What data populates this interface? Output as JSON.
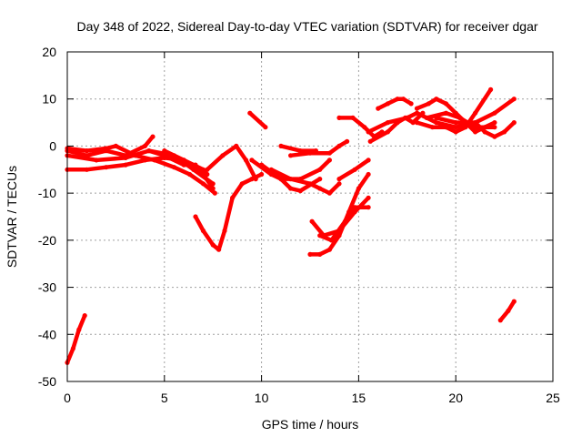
{
  "chart_data": {
    "type": "scatter",
    "title": "Day 348 of 2022, Sidereal Day-to-day VTEC variation (SDTVAR) for receiver dgar",
    "xlabel": "GPS time / hours",
    "ylabel": "SDTVAR / TECUs",
    "xlim": [
      0,
      25
    ],
    "ylim": [
      -50,
      20
    ],
    "xticks": [
      0,
      5,
      10,
      15,
      20,
      25
    ],
    "yticks": [
      -50,
      -40,
      -30,
      -20,
      -10,
      0,
      10,
      20
    ],
    "grid": true,
    "series_color": "#ff0000",
    "series": [
      {
        "x": [
          0.0,
          0.3,
          0.6,
          0.9
        ],
        "y": [
          -46,
          -43,
          -39,
          -36
        ]
      },
      {
        "x": [
          0.0,
          1.0,
          2.0,
          3.0,
          4.0,
          4.4
        ],
        "y": [
          -1,
          -2,
          -1,
          -2,
          0,
          2
        ]
      },
      {
        "x": [
          0.0,
          1.0,
          2.0,
          3.0,
          4.0,
          5.0,
          6.0,
          7.0,
          7.5
        ],
        "y": [
          -5,
          -5,
          -4.5,
          -4,
          -3,
          -2.5,
          -3,
          -6,
          -9
        ]
      },
      {
        "x": [
          0.0,
          1.0,
          2.0,
          2.5,
          3.5,
          4.5,
          5.5,
          6.3,
          7.0,
          7.6
        ],
        "y": [
          -0.5,
          -1,
          -0.5,
          0,
          -2,
          -3,
          -4.5,
          -6,
          -8,
          -10
        ]
      },
      {
        "x": [
          0.0,
          1.5,
          3.0,
          4.2,
          5.5,
          6.5,
          7.5
        ],
        "y": [
          -2,
          -3,
          -2.5,
          -1,
          -2,
          -5,
          -8
        ]
      },
      {
        "x": [
          4.2,
          5.0,
          6.0,
          6.6
        ],
        "y": [
          -1,
          -2,
          -4,
          -4
        ]
      },
      {
        "x": [
          5.0,
          6.0,
          7.0,
          7.2
        ],
        "y": [
          -1,
          -3,
          -5,
          -6
        ]
      },
      {
        "x": [
          6.6,
          7.0,
          7.5,
          7.8,
          8.1,
          8.5,
          9.0,
          9.5,
          10.0
        ],
        "y": [
          -15,
          -18,
          -21,
          -22,
          -18,
          -11,
          -8,
          -7,
          -6
        ]
      },
      {
        "x": [
          7.2,
          8.0,
          8.7,
          9.2,
          9.7
        ],
        "y": [
          -5,
          -2,
          0,
          -3,
          -7
        ]
      },
      {
        "x": [
          9.4,
          10.2
        ],
        "y": [
          7,
          4
        ]
      },
      {
        "x": [
          9.5,
          10.5,
          11.0,
          12.0,
          13.0,
          13.5
        ],
        "y": [
          -3,
          -6,
          -7,
          -7,
          -5,
          -3
        ]
      },
      {
        "x": [
          10.0,
          11.0,
          11.5,
          12.0,
          13.0
        ],
        "y": [
          -4,
          -7,
          -9,
          -9.5,
          -7
        ]
      },
      {
        "x": [
          10.5,
          11.5,
          12.5,
          13.0,
          13.5,
          14.0
        ],
        "y": [
          -5,
          -7,
          -8,
          -9,
          -10,
          -8
        ]
      },
      {
        "x": [
          11.5,
          12.5,
          13.5,
          14.0,
          14.4
        ],
        "y": [
          -2,
          -1.5,
          -1.5,
          0,
          1
        ]
      },
      {
        "x": [
          12.5,
          13.0,
          13.5,
          14.0,
          14.5,
          15.0,
          15.5
        ],
        "y": [
          -23,
          -23,
          -22,
          -19,
          -14,
          -9,
          -6
        ]
      },
      {
        "x": [
          12.6,
          13.2,
          14.0,
          14.8,
          15.5
        ],
        "y": [
          -16,
          -19,
          -18,
          -14,
          -11
        ]
      },
      {
        "x": [
          13.0,
          13.6,
          14.3,
          14.8,
          15.5
        ],
        "y": [
          -19,
          -20,
          -16,
          -13,
          -13
        ]
      },
      {
        "x": [
          11.0,
          12.0,
          12.8
        ],
        "y": [
          0,
          -1,
          -1
        ]
      },
      {
        "x": [
          14.0,
          14.8,
          15.5
        ],
        "y": [
          -7,
          -5,
          -3
        ]
      },
      {
        "x": [
          14.0,
          14.7,
          15.3,
          15.8,
          16.2
        ],
        "y": [
          6,
          6,
          4,
          2,
          3
        ]
      },
      {
        "x": [
          15.5,
          16.5,
          17.5,
          18.0,
          19.0,
          20.0,
          21.0,
          22.0,
          23.0
        ],
        "y": [
          3,
          5,
          6,
          7,
          5,
          4,
          5,
          7,
          10
        ]
      },
      {
        "x": [
          15.6,
          16.5,
          17.0,
          17.4,
          17.8,
          18.3
        ],
        "y": [
          1,
          3,
          5,
          6,
          5,
          7
        ]
      },
      {
        "x": [
          16.0,
          16.5,
          17.0,
          17.3,
          17.7
        ],
        "y": [
          8,
          9,
          10,
          10,
          9
        ]
      },
      {
        "x": [
          18.0,
          18.6,
          19.0,
          19.5,
          20.0,
          21.0,
          21.5,
          22.0
        ],
        "y": [
          8,
          9,
          10,
          9,
          7,
          3,
          4,
          5
        ]
      },
      {
        "x": [
          18.0,
          18.8,
          19.5,
          20.0,
          20.5,
          21.0,
          21.8
        ],
        "y": [
          5,
          4,
          4,
          3,
          4,
          7,
          12
        ]
      },
      {
        "x": [
          19.0,
          20.0,
          21.0,
          21.5,
          22.0,
          22.5,
          23.0
        ],
        "y": [
          6,
          5,
          5,
          3,
          2,
          3,
          5
        ]
      },
      {
        "x": [
          18.5,
          19.5,
          20.2,
          21.0,
          22.0
        ],
        "y": [
          6,
          7,
          6,
          4,
          4
        ]
      },
      {
        "x": [
          22.3,
          22.7,
          23.0
        ],
        "y": [
          -37,
          -35,
          -33
        ]
      }
    ]
  }
}
